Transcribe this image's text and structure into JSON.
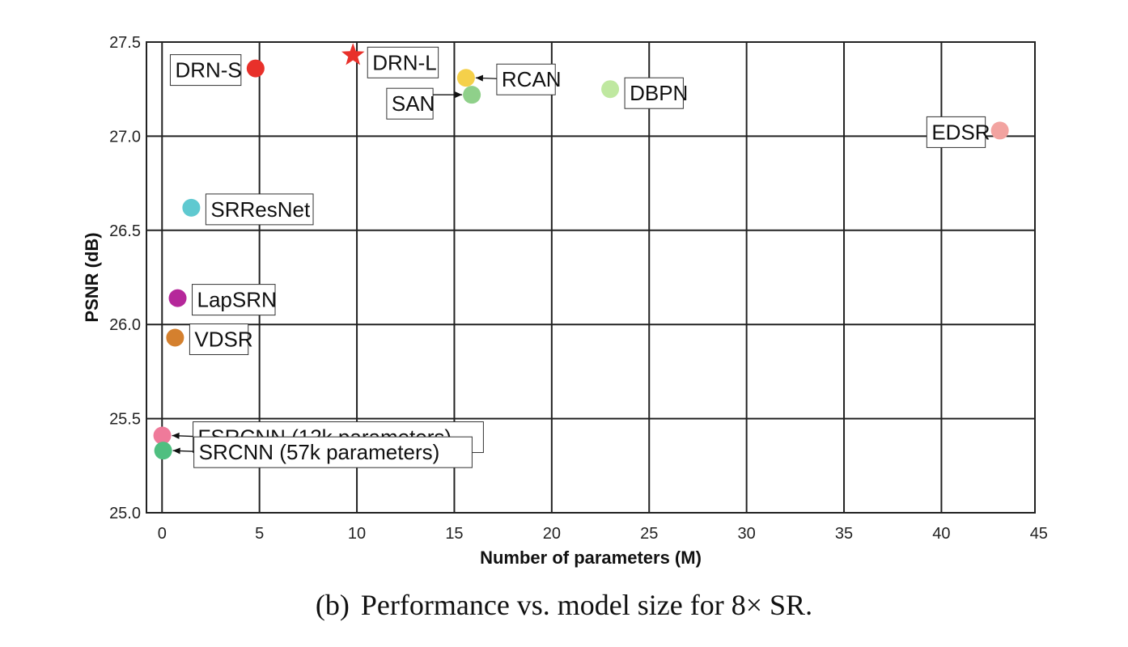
{
  "chart_data": {
    "type": "scatter",
    "xlabel": "Number of parameters (M)",
    "ylabel": "PSNR (dB)",
    "xlim": [
      -0.8,
      44.8
    ],
    "ylim": [
      25.0,
      27.5
    ],
    "xticks": [
      0,
      5,
      10,
      15,
      20,
      25,
      30,
      35,
      40,
      45
    ],
    "yticks": [
      25.0,
      25.5,
      26.0,
      26.5,
      27.0,
      27.5
    ],
    "xtick_labels": [
      "0",
      "5",
      "10",
      "15",
      "20",
      "25",
      "30",
      "35",
      "40",
      "45"
    ],
    "ytick_labels": [
      "25.0",
      "25.5",
      "26.0",
      "26.5",
      "27.0",
      "27.5"
    ],
    "grid": true,
    "points": [
      {
        "name": "DRN-S",
        "x": 4.8,
        "y": 27.36,
        "color": "#e8302a",
        "marker": "circle",
        "label_pos": "left",
        "arrow": false
      },
      {
        "name": "DRN-L",
        "x": 9.8,
        "y": 27.43,
        "color": "#e8302a",
        "marker": "star",
        "label_pos": "right",
        "arrow": false
      },
      {
        "name": "RCAN",
        "x": 15.6,
        "y": 27.31,
        "color": "#f5d04a",
        "marker": "circle",
        "label_pos": "right-arrow",
        "arrow": true
      },
      {
        "name": "SAN",
        "x": 15.9,
        "y": 27.22,
        "color": "#8fd08a",
        "marker": "circle",
        "label_pos": "left-arrow",
        "arrow": true
      },
      {
        "name": "DBPN",
        "x": 23.0,
        "y": 27.25,
        "color": "#bfe8a0",
        "marker": "circle",
        "label_pos": "right",
        "arrow": false
      },
      {
        "name": "EDSR",
        "x": 43.0,
        "y": 27.03,
        "color": "#f2a3a0",
        "marker": "circle",
        "label_pos": "left",
        "arrow": false
      },
      {
        "name": "SRResNet",
        "x": 1.5,
        "y": 26.62,
        "color": "#5fc9d0",
        "marker": "circle",
        "label_pos": "right",
        "arrow": false
      },
      {
        "name": "LapSRN",
        "x": 0.8,
        "y": 26.14,
        "color": "#b5279a",
        "marker": "circle",
        "label_pos": "right",
        "arrow": false
      },
      {
        "name": "VDSR",
        "x": 0.67,
        "y": 25.93,
        "color": "#d4802e",
        "marker": "circle",
        "label_pos": "right",
        "arrow": false
      },
      {
        "name": "FSRCNN (12k parameters)",
        "x": 0.012,
        "y": 25.41,
        "color": "#ef7a9a",
        "marker": "circle",
        "label_pos": "right-arrow",
        "arrow": true
      },
      {
        "name": "SRCNN (57k parameters)",
        "x": 0.057,
        "y": 25.33,
        "color": "#4fbf80",
        "marker": "circle",
        "label_pos": "right-arrow",
        "arrow": true
      }
    ]
  },
  "caption": {
    "tag": "(b)",
    "text": "Performance vs. model size for 8× SR."
  }
}
